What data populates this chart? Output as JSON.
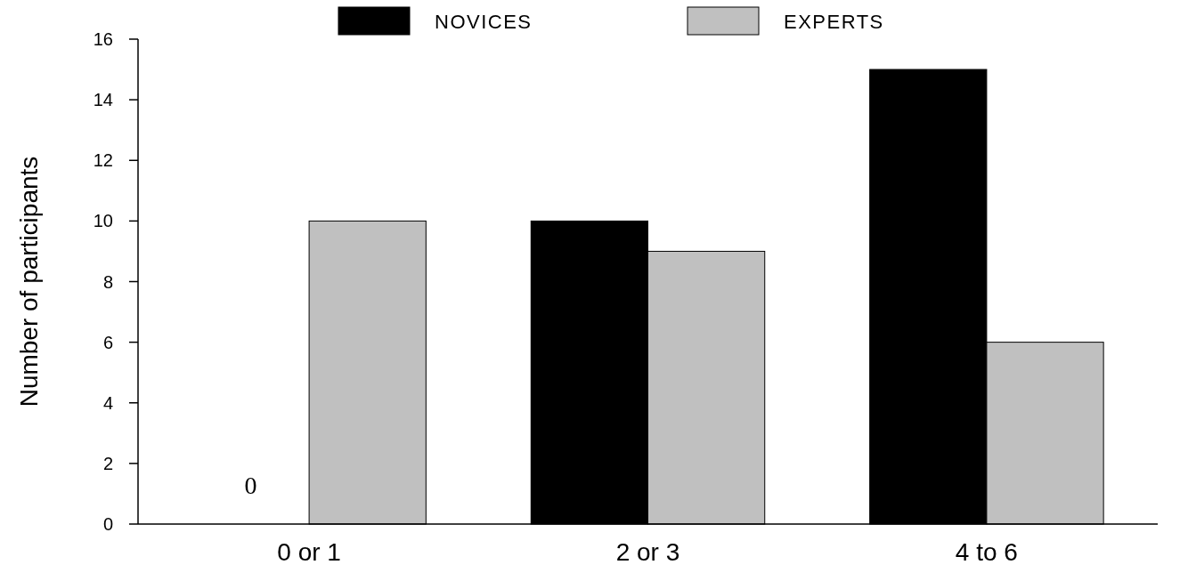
{
  "chart_data": {
    "type": "bar",
    "ylabel": "Number of participants",
    "categories": [
      "0 or 1",
      "2 or 3",
      "4 to 6"
    ],
    "series": [
      {
        "name": "NOVICES",
        "color": "#000000",
        "values": [
          0,
          10,
          15
        ]
      },
      {
        "name": "EXPERTS",
        "color": "#c0c0c0",
        "values": [
          10,
          9,
          6
        ]
      }
    ],
    "annotations": [
      {
        "text": "0",
        "x": "0 or 1",
        "y": 0
      }
    ],
    "ylim": [
      0,
      16
    ],
    "yticks": [
      0,
      2,
      4,
      6,
      8,
      10,
      12,
      14,
      16
    ],
    "grid": false,
    "legend": "top"
  }
}
